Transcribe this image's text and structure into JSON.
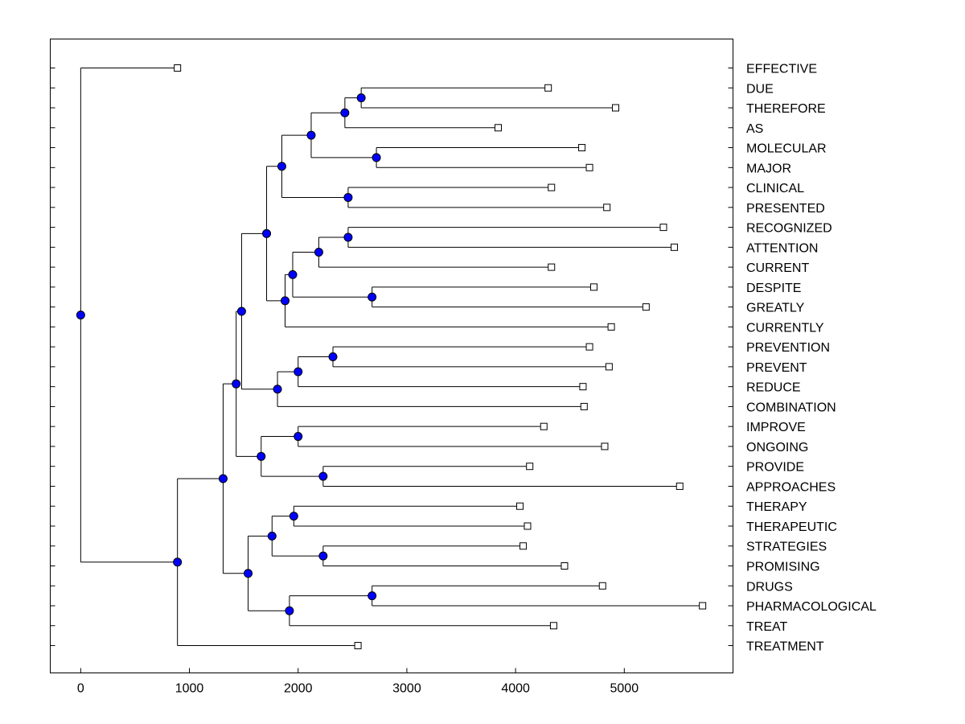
{
  "chart_data": {
    "type": "dendrogram",
    "orientation": "horizontal",
    "xlim": [
      -280,
      6000
    ],
    "x_ticks": [
      0,
      1000,
      2000,
      3000,
      4000,
      5000
    ],
    "x_tick_labels": [
      "0",
      "1000",
      "2000",
      "3000",
      "4000",
      "5000"
    ],
    "colors": {
      "node": "#0000ff",
      "leaf": "#ffffff",
      "line": "#000000"
    },
    "leaves": [
      {
        "label": "EFFECTIVE",
        "x": 890
      },
      {
        "label": "DUE",
        "x": 4300
      },
      {
        "label": "THEREFORE",
        "x": 4920
      },
      {
        "label": "AS",
        "x": 3840
      },
      {
        "label": "MOLECULAR",
        "x": 4610
      },
      {
        "label": "MAJOR",
        "x": 4680
      },
      {
        "label": "CLINICAL",
        "x": 4330
      },
      {
        "label": "PRESENTED",
        "x": 4840
      },
      {
        "label": "RECOGNIZED",
        "x": 5360
      },
      {
        "label": "ATTENTION",
        "x": 5460
      },
      {
        "label": "CURRENT",
        "x": 4330
      },
      {
        "label": "DESPITE",
        "x": 4720
      },
      {
        "label": "GREATLY",
        "x": 5200
      },
      {
        "label": "CURRENTLY",
        "x": 4880
      },
      {
        "label": "PREVENTION",
        "x": 4680
      },
      {
        "label": "PREVENT",
        "x": 4860
      },
      {
        "label": "REDUCE",
        "x": 4620
      },
      {
        "label": "COMBINATION",
        "x": 4630
      },
      {
        "label": "IMPROVE",
        "x": 4260
      },
      {
        "label": "ONGOING",
        "x": 4820
      },
      {
        "label": "PROVIDE",
        "x": 4130
      },
      {
        "label": "APPROACHES",
        "x": 5510
      },
      {
        "label": "THERAPY",
        "x": 4040
      },
      {
        "label": "THERAPEUTIC",
        "x": 4110
      },
      {
        "label": "STRATEGIES",
        "x": 4070
      },
      {
        "label": "PROMISING",
        "x": 4450
      },
      {
        "label": "DRUGS",
        "x": 4800
      },
      {
        "label": "PHARMACOLOGICAL",
        "x": 5720
      },
      {
        "label": "TREAT",
        "x": 4350
      },
      {
        "label": "TREATMENT",
        "x": 2550
      }
    ],
    "nodes": [
      {
        "id": "n1",
        "x": 2580,
        "children": [
          "L1",
          "L2"
        ]
      },
      {
        "id": "n2",
        "x": 2430,
        "children": [
          "n1",
          "L3"
        ]
      },
      {
        "id": "n3",
        "x": 2720,
        "children": [
          "L4",
          "L5"
        ]
      },
      {
        "id": "n4",
        "x": 2120,
        "children": [
          "n2",
          "n3"
        ]
      },
      {
        "id": "n5",
        "x": 2460,
        "children": [
          "L6",
          "L7"
        ]
      },
      {
        "id": "n6",
        "x": 1850,
        "children": [
          "n4",
          "n5"
        ]
      },
      {
        "id": "n7",
        "x": 2460,
        "children": [
          "L8",
          "L9"
        ]
      },
      {
        "id": "n8",
        "x": 2190,
        "children": [
          "n7",
          "L10"
        ]
      },
      {
        "id": "n9",
        "x": 2680,
        "children": [
          "L11",
          "L12"
        ]
      },
      {
        "id": "n10",
        "x": 1950,
        "children": [
          "n8",
          "n9"
        ]
      },
      {
        "id": "n11",
        "x": 1880,
        "children": [
          "n10",
          "L13"
        ]
      },
      {
        "id": "n12",
        "x": 1710,
        "children": [
          "n6",
          "n11"
        ]
      },
      {
        "id": "n13",
        "x": 2320,
        "children": [
          "L14",
          "L15"
        ]
      },
      {
        "id": "n14",
        "x": 2000,
        "children": [
          "n13",
          "L16"
        ]
      },
      {
        "id": "n15",
        "x": 1810,
        "children": [
          "n14",
          "L17"
        ]
      },
      {
        "id": "n16",
        "x": 1480,
        "children": [
          "n12",
          "n15"
        ]
      },
      {
        "id": "n17",
        "x": 2000,
        "children": [
          "L18",
          "L19"
        ]
      },
      {
        "id": "n18",
        "x": 2230,
        "children": [
          "L20",
          "L21"
        ]
      },
      {
        "id": "n19",
        "x": 1660,
        "children": [
          "n17",
          "n18"
        ]
      },
      {
        "id": "n20",
        "x": 1430,
        "children": [
          "n16",
          "n19"
        ]
      },
      {
        "id": "n21",
        "x": 1960,
        "children": [
          "L22",
          "L23"
        ]
      },
      {
        "id": "n22",
        "x": 2230,
        "children": [
          "L24",
          "L25"
        ]
      },
      {
        "id": "n23",
        "x": 1760,
        "children": [
          "n21",
          "n22"
        ]
      },
      {
        "id": "n24",
        "x": 2680,
        "children": [
          "L26",
          "L27"
        ]
      },
      {
        "id": "n25",
        "x": 1920,
        "children": [
          "n24",
          "L28"
        ]
      },
      {
        "id": "n26",
        "x": 1540,
        "children": [
          "n23",
          "n25"
        ]
      },
      {
        "id": "n27",
        "x": 1310,
        "children": [
          "n20",
          "n26"
        ]
      },
      {
        "id": "n28",
        "x": 890,
        "children": [
          "n27",
          "L29"
        ]
      },
      {
        "id": "n29",
        "x": 0,
        "children": [
          "L0",
          "n28"
        ]
      }
    ]
  }
}
